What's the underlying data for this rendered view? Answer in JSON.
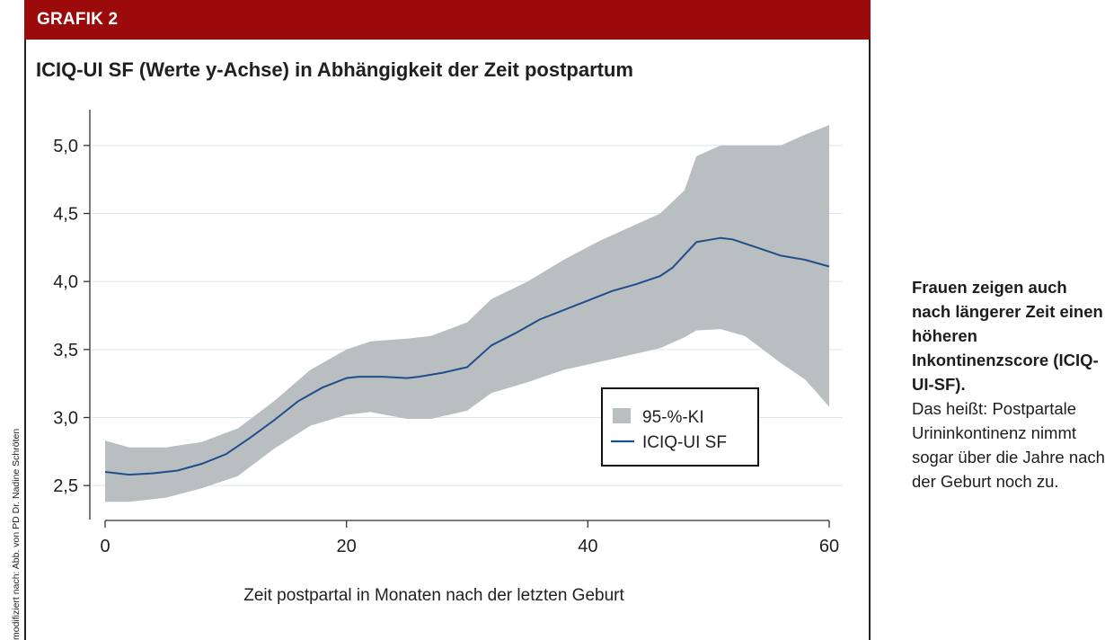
{
  "header": {
    "label": "GRAFIK 2"
  },
  "figure": {
    "title": "ICIQ-UI SF (Werte y-Achse) in Abhängigkeit der Zeit postpartum"
  },
  "credit": "modifiziert nach: Abb. von PD Dr. Nadine Schröten",
  "caption": {
    "bold": "Frauen zeigen auch nach längerer Zeit einen höheren Inkontinenzscore (ICIQ-UI-SF).",
    "normal": "Das heißt: Postpartale Urininkontinenz nimmt sogar über die Jahre nach der Geburt noch zu."
  },
  "colors": {
    "header": "#9b0b0b",
    "band": "#b9bec1",
    "line": "#1f4e8c",
    "grid": "#d9e6ee"
  },
  "chart_data": {
    "type": "line",
    "xlabel": "Zeit postpartal in Monaten nach der letzten Geburt",
    "ylabel": "ICIQ-UI SF",
    "xlim": [
      0,
      60
    ],
    "ylim": [
      2.25,
      5.25
    ],
    "xticks": [
      0,
      20,
      40,
      60
    ],
    "xtick_labels": [
      "0",
      "20",
      "40",
      "60"
    ],
    "yticks": [
      2.5,
      3.0,
      3.5,
      4.0,
      4.5,
      5.0
    ],
    "ytick_labels": [
      "2,5",
      "3,0",
      "3,5",
      "4,0",
      "4,5",
      "5,0"
    ],
    "grid": true,
    "legend_position": "center-right",
    "series": [
      {
        "name": "95-%-KI",
        "kind": "band",
        "x": [
          0,
          2,
          5,
          8,
          11,
          14,
          17,
          20,
          22,
          25,
          27,
          30,
          32,
          35,
          38,
          41,
          44,
          46,
          48,
          49,
          51,
          53,
          56,
          58,
          60
        ],
        "upper": [
          2.83,
          2.78,
          2.78,
          2.82,
          2.92,
          3.12,
          3.35,
          3.5,
          3.56,
          3.58,
          3.6,
          3.7,
          3.87,
          4.0,
          4.16,
          4.3,
          4.42,
          4.5,
          4.67,
          4.92,
          5.0,
          5.0,
          5.0,
          5.08,
          5.15
        ],
        "lower": [
          2.38,
          2.38,
          2.41,
          2.48,
          2.57,
          2.77,
          2.94,
          3.02,
          3.04,
          2.99,
          2.99,
          3.05,
          3.18,
          3.26,
          3.35,
          3.41,
          3.47,
          3.51,
          3.59,
          3.64,
          3.65,
          3.6,
          3.4,
          3.28,
          3.08
        ]
      },
      {
        "name": "ICIQ-UI SF",
        "kind": "line",
        "x": [
          0,
          2,
          4,
          6,
          8,
          10,
          12,
          14,
          16,
          18,
          20,
          21,
          23,
          25,
          26,
          28,
          29,
          30,
          32,
          34,
          36,
          38,
          40,
          42,
          44,
          46,
          47,
          49,
          51,
          52,
          54,
          56,
          58,
          60
        ],
        "values": [
          2.6,
          2.58,
          2.59,
          2.61,
          2.66,
          2.73,
          2.85,
          2.98,
          3.12,
          3.22,
          3.29,
          3.3,
          3.3,
          3.29,
          3.3,
          3.33,
          3.35,
          3.37,
          3.53,
          3.62,
          3.72,
          3.79,
          3.86,
          3.93,
          3.98,
          4.04,
          4.1,
          4.29,
          4.32,
          4.31,
          4.25,
          4.19,
          4.16,
          4.11
        ]
      }
    ]
  }
}
